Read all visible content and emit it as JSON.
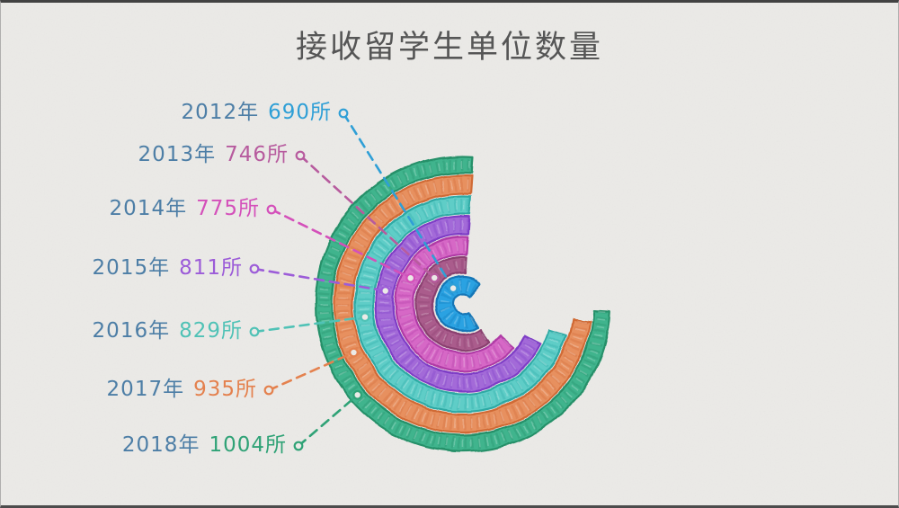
{
  "page": {
    "background_color": "#ebeae7",
    "edge_color": "#424242"
  },
  "chart_data": {
    "type": "radial-bar",
    "style": "hand-drawn-sketch",
    "title": "接收留学生单位数量",
    "title_color": "#565656",
    "unit": "所",
    "categories": [
      "2012年",
      "2013年",
      "2014年",
      "2015年",
      "2016年",
      "2017年",
      "2018年"
    ],
    "values": [
      690,
      746,
      775,
      811,
      829,
      935,
      1004
    ],
    "value_labels": [
      "690所",
      "746所",
      "775所",
      "811所",
      "829所",
      "935所",
      "1004所"
    ],
    "ring_order": "innermost=2012, outermost=2018",
    "legend_position": "left",
    "grid": false,
    "year_label_color": "#4d7ea6",
    "angles": {
      "note": "degrees clockwise from 12 o'clock; arcs run counterclockwise from start, gap on right side",
      "start_deg_cw_from_top": [
        40,
        4,
        4,
        4,
        4,
        4,
        4
      ],
      "end_deg_cw_from_top": [
        148,
        146,
        131,
        117,
        107,
        98,
        93
      ]
    },
    "ring_fill_colors": [
      "#2aa2e2",
      "#aa5c8c",
      "#d668c6",
      "#a36ad8",
      "#5ecdc7",
      "#e7905f",
      "#3fb48d"
    ],
    "ring_stroke_colors": [
      "#1476b6",
      "#8a4070",
      "#b03ba6",
      "#7e3ec6",
      "#2fa9a4",
      "#d06a34",
      "#259069"
    ],
    "accent_colors": [
      "#2f9fd6",
      "#b75b9e",
      "#d450ba",
      "#9c5cd8",
      "#50c2b6",
      "#e4814e",
      "#2fa276"
    ]
  }
}
